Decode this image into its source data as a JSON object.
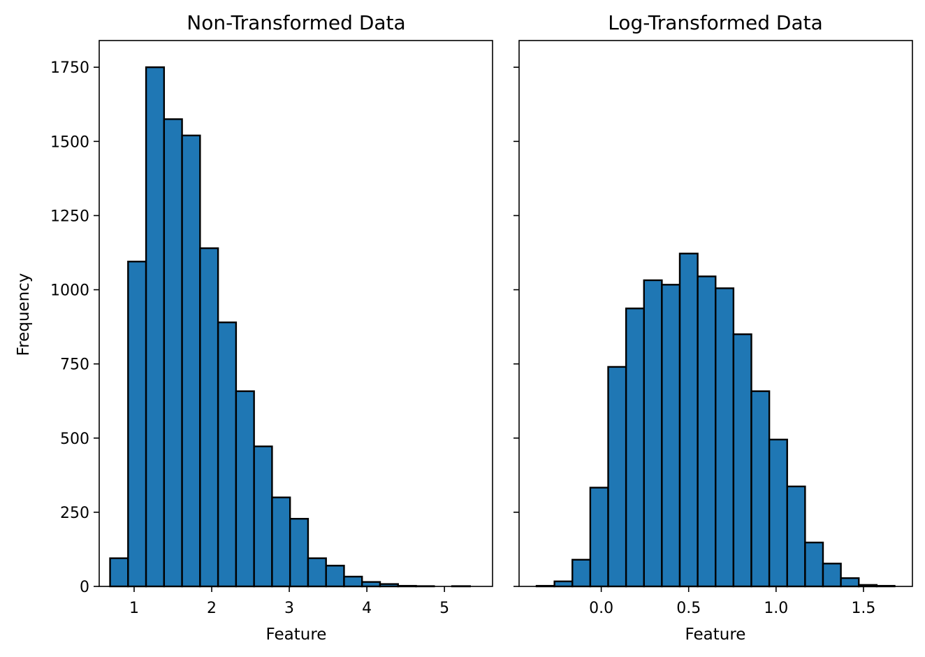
{
  "figure": {
    "ylabel": "Frequency"
  },
  "chart_data": [
    {
      "type": "bar",
      "title": "Non-Transformed Data",
      "xlabel": "Feature",
      "ylabel": "Frequency",
      "xlim": [
        0.55,
        5.62
      ],
      "ylim": [
        0,
        1840
      ],
      "xticks": [
        1,
        2,
        3,
        4,
        5
      ],
      "xtick_labels": [
        "1",
        "2",
        "3",
        "4",
        "5"
      ],
      "yticks": [
        0,
        250,
        500,
        750,
        1000,
        1250,
        1500,
        1750
      ],
      "ytick_labels": [
        "0",
        "250",
        "500",
        "750",
        "1000",
        "1250",
        "1500",
        "1750"
      ],
      "bin_start": 0.69,
      "bin_width": 0.232,
      "values": [
        95,
        1095,
        1750,
        1575,
        1520,
        1140,
        890,
        658,
        472,
        300,
        228,
        95,
        70,
        33,
        15,
        8,
        2,
        1,
        0,
        1
      ],
      "bar_color": "#1f77b4",
      "edge_color": "#000000",
      "grid": false
    },
    {
      "type": "bar",
      "title": "Log-Transformed Data",
      "xlabel": "Feature",
      "ylabel": "",
      "xlim": [
        -0.47,
        1.78
      ],
      "ylim": [
        0,
        1840
      ],
      "xticks": [
        0.0,
        0.5,
        1.0,
        1.5
      ],
      "xtick_labels": [
        "0.0",
        "0.5",
        "1.0",
        "1.5"
      ],
      "yticks": [
        0,
        250,
        500,
        750,
        1000,
        1250,
        1500,
        1750
      ],
      "ytick_labels": [],
      "bin_start": -0.37,
      "bin_width": 0.1024,
      "values": [
        2,
        17,
        90,
        333,
        740,
        937,
        1032,
        1017,
        1122,
        1045,
        1005,
        850,
        658,
        495,
        337,
        148,
        77,
        28,
        5,
        2
      ],
      "bar_color": "#1f77b4",
      "edge_color": "#000000",
      "grid": false
    }
  ]
}
